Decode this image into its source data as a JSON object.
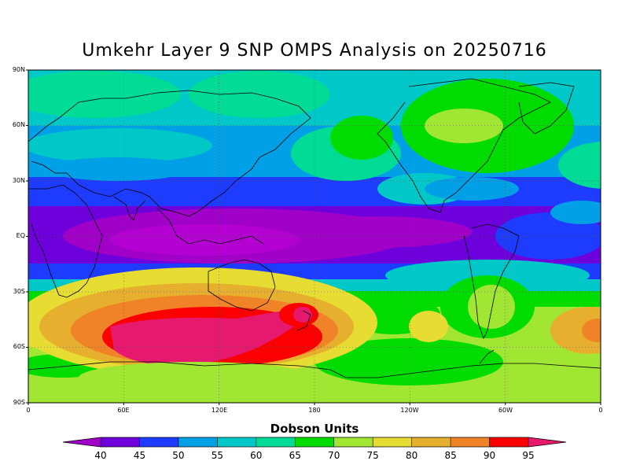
{
  "title": "Umkehr Layer 9 SNP OMPS Analysis on 20250716",
  "lat_labels": [
    "90N",
    "60N",
    "30N",
    "EQ",
    "30S",
    "60S",
    "90S"
  ],
  "lon_labels": [
    "0",
    "60E",
    "120E",
    "180",
    "120W",
    "60W",
    "0"
  ],
  "colorbar": {
    "title": "Dobson Units",
    "ticks": [
      "40",
      "45",
      "50",
      "55",
      "60",
      "65",
      "70",
      "75",
      "80",
      "85",
      "90",
      "95"
    ],
    "colors": [
      "#a000c8",
      "#6e00dc",
      "#1e3cff",
      "#00a0e6",
      "#00c8c8",
      "#00dc96",
      "#00dc00",
      "#a0e632",
      "#e6dc32",
      "#e6af2d",
      "#f08228",
      "#fa0000",
      "#e6196e"
    ]
  },
  "map": {
    "projection": "cylindrical equidistant, 0 to 360 longitude",
    "field": "ozone column Umkehr layer 9",
    "units": "Dobson Units",
    "grid": "dotted",
    "colors_by_level": {
      "lt40": "#a000c8",
      "40": "#6e00dc",
      "45": "#1e3cff",
      "50": "#00a0e6",
      "55": "#00c8c8",
      "60": "#00dc96",
      "65": "#00dc00",
      "70": "#a0e632",
      "75": "#e6dc32",
      "80": "#e6af2d",
      "85": "#f08228",
      "90": "#fa0000",
      "95": "#e6196e"
    }
  }
}
